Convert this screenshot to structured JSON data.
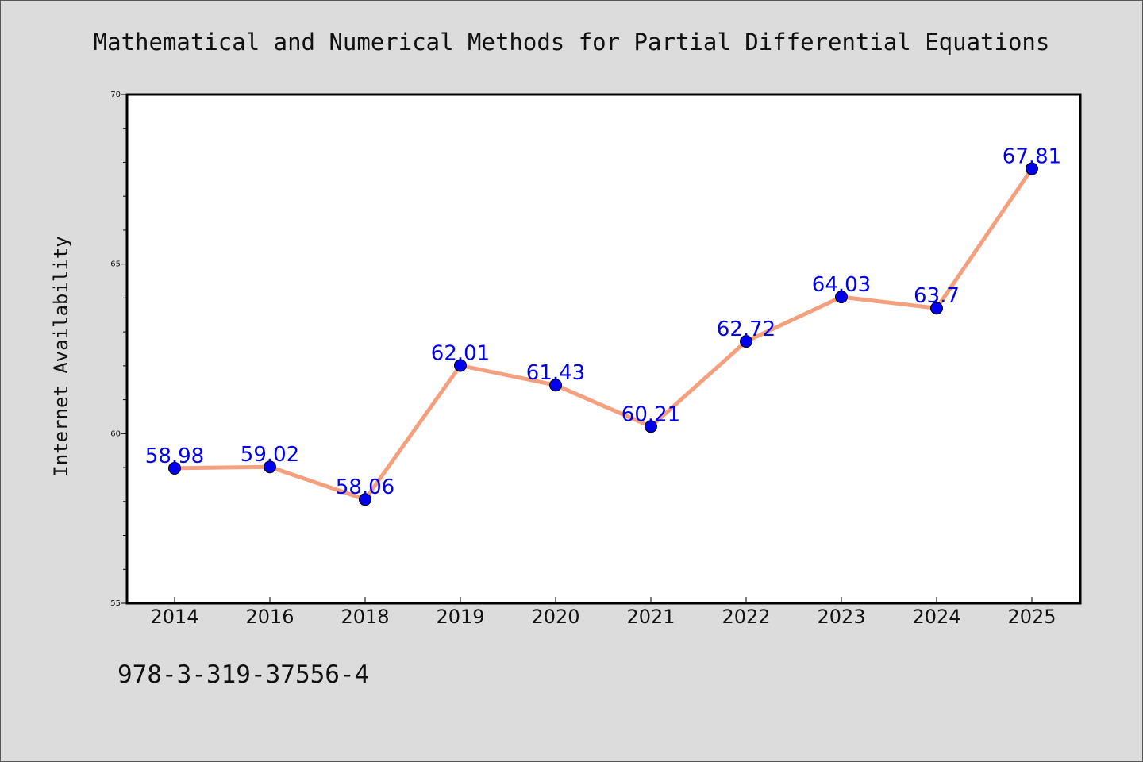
{
  "chart_data": {
    "type": "line",
    "title": "Mathematical and Numerical Methods for Partial Differential Equations",
    "xlabel": "",
    "ylabel": "Internet Availability",
    "categories": [
      "2014",
      "2016",
      "2018",
      "2019",
      "2020",
      "2021",
      "2022",
      "2023",
      "2024",
      "2025"
    ],
    "values": [
      58.98,
      59.02,
      58.06,
      62.01,
      61.43,
      60.21,
      62.72,
      64.03,
      63.7,
      67.81
    ],
    "value_labels": [
      "58.98",
      "59.02",
      "58.06",
      "62.01",
      "61.43",
      "60.21",
      "62.72",
      "64.03",
      "63.7",
      "67.81"
    ],
    "ylim": [
      55,
      70
    ],
    "yticks": [
      "55",
      "60",
      "65",
      "70"
    ],
    "grid": false,
    "line_color": "#f4a07e",
    "marker_color": "#0000ee",
    "label_color": "#0000ee"
  },
  "caption": "978-3-319-37556-4",
  "colors": {
    "background": "#dcdcdc",
    "plot_area": "#ffffff"
  }
}
